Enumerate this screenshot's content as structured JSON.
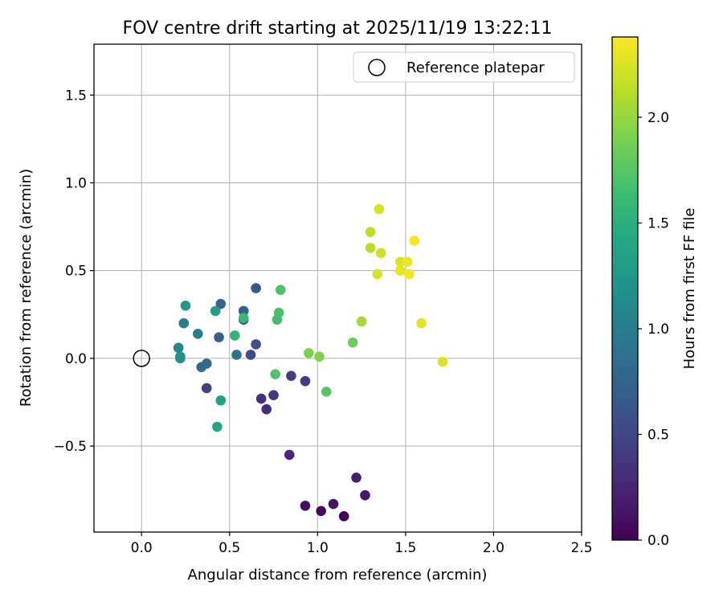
{
  "chart_data": {
    "type": "scatter",
    "title": "FOV centre drift starting at 2025/11/19 13:22:11",
    "xlabel": "Angular distance from reference (arcmin)",
    "ylabel": "Rotation from reference (arcmin)",
    "xlim": [
      -0.27,
      2.5
    ],
    "ylim": [
      -0.99,
      1.79
    ],
    "grid": true,
    "xticks": [
      0.0,
      0.5,
      1.0,
      1.5,
      2.0,
      2.5
    ],
    "xtick_labels": [
      "0.0",
      "0.5",
      "1.0",
      "1.5",
      "2.0",
      "2.5"
    ],
    "yticks": [
      -0.5,
      0.0,
      0.5,
      1.0,
      1.5
    ],
    "ytick_labels": [
      "−0.5",
      "0.0",
      "0.5",
      "1.0",
      "1.5"
    ],
    "legend": {
      "label": "Reference platepar",
      "position": "top-right"
    },
    "reference": {
      "x": 0.0,
      "y": 0.0
    },
    "colorbar": {
      "label": "Hours from first FF file",
      "colormap": "viridis",
      "range": [
        0.0,
        2.38
      ],
      "ticks": [
        0.0,
        0.5,
        1.0,
        1.5,
        2.0
      ],
      "tick_labels": [
        "0.0",
        "0.5",
        "1.0",
        "1.5",
        "2.0"
      ]
    },
    "points": [
      {
        "x": 1.15,
        "y": -0.9,
        "t": 0.02
      },
      {
        "x": 1.02,
        "y": -0.87,
        "t": 0.05
      },
      {
        "x": 0.93,
        "y": -0.84,
        "t": 0.09
      },
      {
        "x": 1.09,
        "y": -0.83,
        "t": 0.12
      },
      {
        "x": 1.27,
        "y": -0.78,
        "t": 0.15
      },
      {
        "x": 1.22,
        "y": -0.68,
        "t": 0.19
      },
      {
        "x": 0.84,
        "y": -0.55,
        "t": 0.26
      },
      {
        "x": 0.71,
        "y": -0.29,
        "t": 0.3
      },
      {
        "x": 0.68,
        "y": -0.23,
        "t": 0.33
      },
      {
        "x": 0.75,
        "y": -0.21,
        "t": 0.37
      },
      {
        "x": 0.93,
        "y": -0.13,
        "t": 0.4
      },
      {
        "x": 0.85,
        "y": -0.1,
        "t": 0.43
      },
      {
        "x": 0.37,
        "y": -0.17,
        "t": 0.46
      },
      {
        "x": 0.62,
        "y": 0.02,
        "t": 0.55
      },
      {
        "x": 0.65,
        "y": 0.08,
        "t": 0.58
      },
      {
        "x": 0.65,
        "y": 0.4,
        "t": 0.63
      },
      {
        "x": 0.58,
        "y": 0.22,
        "t": 0.68
      },
      {
        "x": 0.58,
        "y": 0.27,
        "t": 0.71
      },
      {
        "x": 0.44,
        "y": 0.12,
        "t": 0.74
      },
      {
        "x": 0.45,
        "y": 0.31,
        "t": 0.76
      },
      {
        "x": 0.37,
        "y": -0.03,
        "t": 0.8
      },
      {
        "x": 0.34,
        "y": -0.05,
        "t": 0.84
      },
      {
        "x": 0.54,
        "y": 0.02,
        "t": 0.9
      },
      {
        "x": 0.24,
        "y": 0.2,
        "t": 1.0
      },
      {
        "x": 0.32,
        "y": 0.14,
        "t": 1.05
      },
      {
        "x": 0.21,
        "y": 0.06,
        "t": 1.1
      },
      {
        "x": 0.22,
        "y": 0.0,
        "t": 1.15
      },
      {
        "x": 0.22,
        "y": 0.01,
        "t": 1.2
      },
      {
        "x": 0.25,
        "y": 0.3,
        "t": 1.25
      },
      {
        "x": 0.42,
        "y": 0.27,
        "t": 1.3
      },
      {
        "x": 0.45,
        "y": -0.24,
        "t": 1.35
      },
      {
        "x": 0.43,
        "y": -0.39,
        "t": 1.4
      },
      {
        "x": 0.53,
        "y": 0.13,
        "t": 1.55
      },
      {
        "x": 0.58,
        "y": 0.23,
        "t": 1.58
      },
      {
        "x": 0.77,
        "y": 0.22,
        "t": 1.65
      },
      {
        "x": 0.78,
        "y": 0.26,
        "t": 1.68
      },
      {
        "x": 0.79,
        "y": 0.39,
        "t": 1.7
      },
      {
        "x": 0.76,
        "y": -0.09,
        "t": 1.72
      },
      {
        "x": 1.05,
        "y": -0.19,
        "t": 1.75
      },
      {
        "x": 1.2,
        "y": 0.09,
        "t": 1.85
      },
      {
        "x": 0.95,
        "y": 0.03,
        "t": 1.9
      },
      {
        "x": 1.01,
        "y": 0.01,
        "t": 1.93
      },
      {
        "x": 1.25,
        "y": 0.21,
        "t": 2.05
      },
      {
        "x": 1.3,
        "y": 0.63,
        "t": 2.12
      },
      {
        "x": 1.3,
        "y": 0.72,
        "t": 2.15
      },
      {
        "x": 1.36,
        "y": 0.6,
        "t": 2.2
      },
      {
        "x": 1.34,
        "y": 0.48,
        "t": 2.22
      },
      {
        "x": 1.35,
        "y": 0.85,
        "t": 2.24
      },
      {
        "x": 1.47,
        "y": 0.55,
        "t": 2.25
      },
      {
        "x": 1.71,
        "y": -0.02,
        "t": 2.26
      },
      {
        "x": 1.59,
        "y": 0.2,
        "t": 2.28
      },
      {
        "x": 1.47,
        "y": 0.5,
        "t": 2.3
      },
      {
        "x": 1.51,
        "y": 0.55,
        "t": 2.32
      },
      {
        "x": 1.52,
        "y": 0.48,
        "t": 2.34
      },
      {
        "x": 1.55,
        "y": 0.67,
        "t": 2.36
      }
    ]
  }
}
